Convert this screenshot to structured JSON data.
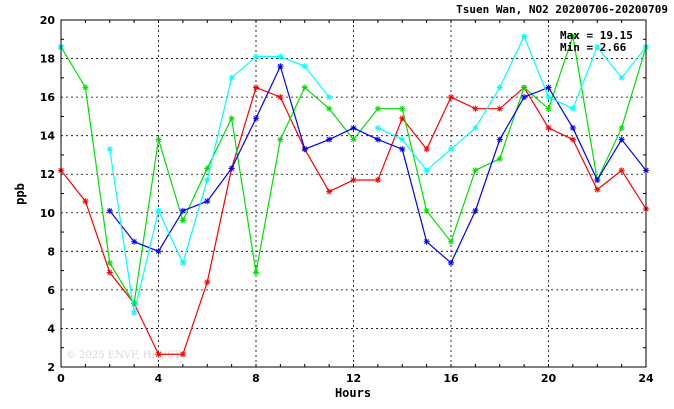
{
  "chart_data": {
    "type": "line",
    "title": "Tsuen Wan, NO2 20200706-20200709",
    "xlabel": "Hours",
    "ylabel": "ppb",
    "xlim": [
      0,
      24
    ],
    "ylim": [
      2,
      20
    ],
    "x_ticks": [
      0,
      4,
      8,
      12,
      16,
      20,
      24
    ],
    "y_ticks": [
      2,
      4,
      6,
      8,
      10,
      12,
      14,
      16,
      18,
      20
    ],
    "grid": true,
    "max_label": "Max = 19.15",
    "min_label": "Min = 2.66",
    "watermark": "© 2025 ENVF, HKUST",
    "x": [
      0,
      1,
      2,
      3,
      4,
      5,
      6,
      7,
      8,
      9,
      10,
      11,
      12,
      13,
      14,
      15,
      16,
      17,
      18,
      19,
      20,
      21,
      22,
      23,
      24
    ],
    "series": [
      {
        "color": "#ff0000",
        "values": [
          12.2,
          10.6,
          6.9,
          5.3,
          2.66,
          2.66,
          6.4,
          12.3,
          16.5,
          16.0,
          13.3,
          11.1,
          11.7,
          11.7,
          14.9,
          13.3,
          16.0,
          15.4,
          15.4,
          16.5,
          14.4,
          13.8,
          11.2,
          12.2,
          10.2
        ]
      },
      {
        "color": "#00e000",
        "values": [
          18.6,
          16.5,
          7.4,
          5.3,
          13.8,
          9.6,
          12.3,
          14.9,
          6.9,
          13.8,
          16.5,
          15.4,
          13.8,
          15.4,
          15.4,
          10.1,
          8.5,
          12.2,
          12.8,
          16.5,
          15.4,
          19.15,
          11.7,
          14.4,
          18.6
        ]
      },
      {
        "color": "#0000ff",
        "values": [
          18.6,
          null,
          10.1,
          8.5,
          8.0,
          10.1,
          10.6,
          12.3,
          14.9,
          17.6,
          13.3,
          13.8,
          14.4,
          13.8,
          13.3,
          8.5,
          7.4,
          10.1,
          13.8,
          16.0,
          16.5,
          14.4,
          11.7,
          13.8,
          12.2
        ]
      },
      {
        "color": "#00ffff",
        "values": [
          18.6,
          null,
          13.3,
          4.8,
          10.1,
          7.4,
          11.7,
          17.0,
          18.1,
          18.1,
          17.6,
          16.0,
          null,
          14.4,
          13.8,
          12.2,
          13.3,
          14.4,
          16.5,
          19.15,
          16.0,
          15.4,
          18.6,
          17.0,
          18.6
        ]
      }
    ]
  }
}
